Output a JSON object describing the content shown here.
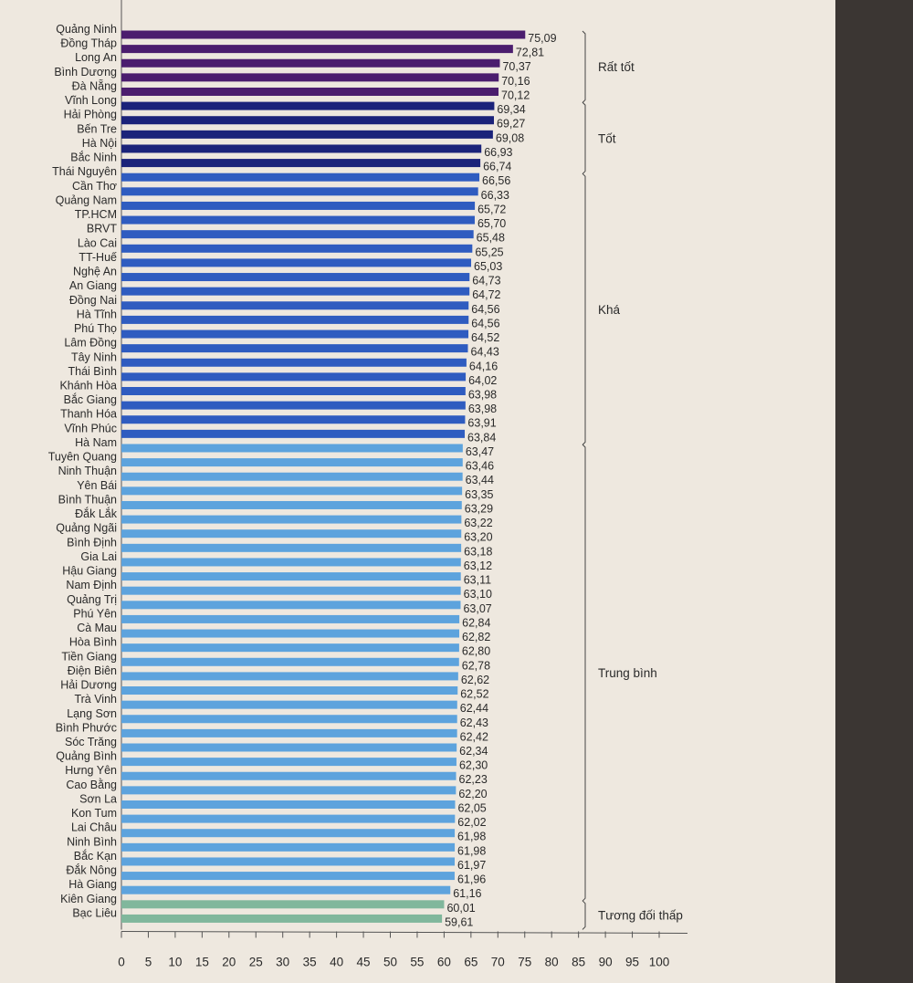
{
  "chart_data": {
    "type": "bar",
    "orientation": "horizontal",
    "title": "",
    "xlabel": "",
    "ylabel": "",
    "xlim": [
      0,
      100
    ],
    "xticks": [
      0,
      5,
      10,
      15,
      20,
      25,
      30,
      35,
      40,
      45,
      50,
      55,
      60,
      65,
      70,
      75,
      80,
      85,
      90,
      95,
      100
    ],
    "grid": false,
    "categories": [
      "Quảng Ninh",
      "Đồng Tháp",
      "Long An",
      "Bình Dương",
      "Đà Nẵng",
      "Vĩnh Long",
      "Hải Phòng",
      "Bến Tre",
      "Hà Nội",
      "Bắc Ninh",
      "Thái Nguyên",
      "Cần Thơ",
      "Quảng Nam",
      "TP.HCM",
      "BRVT",
      "Lào Cai",
      "TT-Huế",
      "Nghệ An",
      "An Giang",
      "Đồng Nai",
      "Hà Tĩnh",
      "Phú Thọ",
      "Lâm Đồng",
      "Tây Ninh",
      "Thái Bình",
      "Khánh Hòa",
      "Bắc Giang",
      "Thanh Hóa",
      "Vĩnh Phúc",
      "Hà Nam",
      "Tuyên Quang",
      "Ninh Thuận",
      "Yên Bái",
      "Bình Thuận",
      "Đắk Lắk",
      "Quảng Ngãi",
      "Bình Định",
      "Gia Lai",
      "Hậu Giang",
      "Nam Định",
      "Quảng Trị",
      "Phú Yên",
      "Cà Mau",
      "Hòa Bình",
      "Tiền Giang",
      "Điện Biên",
      "Hải Dương",
      "Trà Vinh",
      "Lạng Sơn",
      "Bình Phước",
      "Sóc Trăng",
      "Quảng Bình",
      "Hưng Yên",
      "Cao Bằng",
      "Sơn La",
      "Kon Tum",
      "Lai Châu",
      "Ninh Bình",
      "Bắc Kạn",
      "Đắk Nông",
      "Hà Giang",
      "Kiên Giang",
      "Bạc Liêu"
    ],
    "values": [
      75.09,
      72.81,
      70.37,
      70.16,
      70.12,
      69.34,
      69.27,
      69.08,
      66.93,
      66.74,
      66.56,
      66.33,
      65.72,
      65.7,
      65.48,
      65.25,
      65.03,
      64.73,
      64.72,
      64.56,
      64.56,
      64.52,
      64.43,
      64.16,
      64.02,
      63.98,
      63.98,
      63.91,
      63.84,
      63.47,
      63.46,
      63.44,
      63.35,
      63.29,
      63.22,
      63.2,
      63.18,
      63.12,
      63.11,
      63.1,
      63.07,
      62.84,
      62.82,
      62.8,
      62.78,
      62.62,
      62.52,
      62.44,
      62.43,
      62.42,
      62.34,
      62.3,
      62.23,
      62.2,
      62.05,
      62.02,
      61.98,
      61.98,
      61.97,
      61.96,
      61.16,
      60.01,
      59.61
    ],
    "value_labels": [
      "75,09",
      "72,81",
      "70,37",
      "70,16",
      "70,12",
      "69,34",
      "69,27",
      "69,08",
      "66,93",
      "66,74",
      "66,56",
      "66,33",
      "65,72",
      "65,70",
      "65,48",
      "65,25",
      "65,03",
      "64,73",
      "64,72",
      "64,56",
      "64,56",
      "64,52",
      "64,43",
      "64,16",
      "64,02",
      "63,98",
      "63,98",
      "63,91",
      "63,84",
      "63,47",
      "63,46",
      "63,44",
      "63,35",
      "63,29",
      "63,22",
      "63,20",
      "63,18",
      "63,12",
      "63,11",
      "63,10",
      "63,07",
      "62,84",
      "62,82",
      "62,80",
      "62,78",
      "62,62",
      "62,52",
      "62,44",
      "62,43",
      "62,42",
      "62,34",
      "62,30",
      "62,23",
      "62,20",
      "62,05",
      "62,02",
      "61,98",
      "61,98",
      "61,97",
      "61,96",
      "61,16",
      "60,01",
      "59,61"
    ],
    "groups": [
      {
        "name": "Rất tốt",
        "start": 0,
        "end": 4,
        "color": "#4b1d6e"
      },
      {
        "name": "Tốt",
        "start": 5,
        "end": 9,
        "color": "#1b237a"
      },
      {
        "name": "Khá",
        "start": 10,
        "end": 28,
        "color": "#2f5cc0"
      },
      {
        "name": "Trung bình",
        "start": 29,
        "end": 60,
        "color": "#5da3dd"
      },
      {
        "name": "Tương đối thấp",
        "start": 61,
        "end": 62,
        "color": "#80b79c"
      }
    ]
  }
}
